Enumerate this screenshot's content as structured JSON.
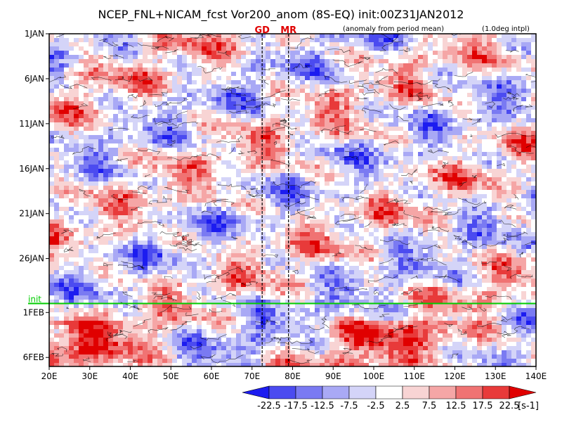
{
  "chart_data": {
    "type": "heatmap",
    "title": "NCEP_FNL+NICAM_fcst Vor200_anom (8S-EQ) init:00Z31JAN2012",
    "subtitle_left": "(anomaly from period mean)",
    "subtitle_right": "(1.0deg intpl)",
    "x_ticks": [
      "20E",
      "30E",
      "40E",
      "50E",
      "60E",
      "70E",
      "80E",
      "90E",
      "100E",
      "110E",
      "120E",
      "130E",
      "140E"
    ],
    "xlim": [
      20,
      140
    ],
    "y_ticks": [
      "1JAN",
      "6JAN",
      "11JAN",
      "16JAN",
      "21JAN",
      "26JAN",
      "1FEB",
      "6FEB"
    ],
    "y_tick_days": [
      1,
      6,
      11,
      16,
      21,
      26,
      32,
      37
    ],
    "ylim_days": [
      1,
      38
    ],
    "init_label": "init",
    "init_day": 31,
    "markers": [
      {
        "label": "GD",
        "lon": 72.5
      },
      {
        "label": "MR",
        "lon": 79
      }
    ],
    "colorbar": {
      "levels": [
        "-22.5",
        "-17.5",
        "-12.5",
        "-7.5",
        "-2.5",
        "2.5",
        "7.5",
        "12.5",
        "17.5",
        "22.5"
      ],
      "unit": "[s-1]",
      "colors": [
        "#1c1cf0",
        "#4b4bf0",
        "#7a7af2",
        "#a9a9f5",
        "#d4d4f8",
        "#ffffff",
        "#f8d4d4",
        "#f5a6a6",
        "#f07373",
        "#e83a3a",
        "#e00000"
      ]
    }
  }
}
